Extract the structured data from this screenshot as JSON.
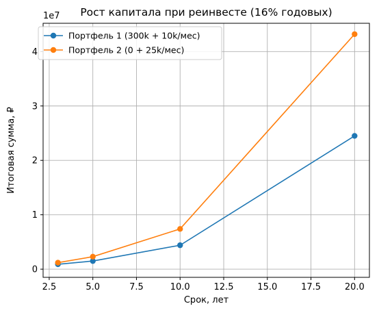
{
  "chart_data": {
    "type": "line",
    "title": "Рост капитала при реинвесте (16% годовых)",
    "xlabel": "Срок, лет",
    "ylabel": "Итоговая сумма, ₽",
    "y_offset_text": "1e7",
    "x": [
      3,
      5,
      10,
      20
    ],
    "xlim": [
      2.15,
      20.85
    ],
    "ylim": [
      -0.15,
      4.52
    ],
    "y_scale_note": "values in units of 1e7",
    "xticks": [
      2.5,
      5.0,
      7.5,
      10.0,
      12.5,
      15.0,
      17.5,
      20.0
    ],
    "xtick_labels": [
      "2.5",
      "5.0",
      "7.5",
      "10.0",
      "12.5",
      "15.0",
      "17.5",
      "20.0"
    ],
    "yticks": [
      0,
      1,
      2,
      3,
      4
    ],
    "ytick_labels": [
      "0",
      "1",
      "2",
      "3",
      "4"
    ],
    "grid": true,
    "legend_position": "upper-left",
    "series": [
      {
        "name": "Портфель 1 (300k + 10k/мес)",
        "color": "#1f77b4",
        "values": [
          0.09,
          0.15,
          0.44,
          2.45
        ]
      },
      {
        "name": "Портфель 2 (0 + 25k/мес)",
        "color": "#ff7f0e",
        "values": [
          0.12,
          0.23,
          0.74,
          4.32
        ]
      }
    ]
  }
}
